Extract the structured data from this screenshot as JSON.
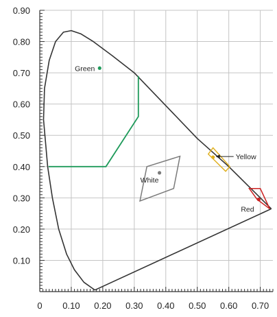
{
  "chart_data": {
    "type": "scatter",
    "title": "",
    "xlabel": "",
    "ylabel": "",
    "xlim": [
      0,
      0.74
    ],
    "ylim": [
      0,
      0.9
    ],
    "grid": true,
    "x_ticks": [
      0,
      0.1,
      0.2,
      0.3,
      0.4,
      0.5,
      0.6,
      0.7
    ],
    "x_tick_labels": [
      "0",
      "0.10",
      "0.20",
      "0.30",
      "0.40",
      "0.50",
      "0.60",
      "0.70"
    ],
    "y_ticks": [
      0.1,
      0.2,
      0.3,
      0.4,
      0.5,
      0.6,
      0.7,
      0.8,
      0.9
    ],
    "y_tick_labels": [
      "0.10",
      "0.20",
      "0.30",
      "0.40",
      "0.50",
      "0.60",
      "0.70",
      "0.80",
      "0.90"
    ],
    "spectral_locus": [
      [
        0.175,
        0.005
      ],
      [
        0.165,
        0.012
      ],
      [
        0.14,
        0.03
      ],
      [
        0.11,
        0.07
      ],
      [
        0.085,
        0.12
      ],
      [
        0.06,
        0.2
      ],
      [
        0.04,
        0.3
      ],
      [
        0.025,
        0.4
      ],
      [
        0.012,
        0.55
      ],
      [
        0.015,
        0.65
      ],
      [
        0.03,
        0.74
      ],
      [
        0.05,
        0.8
      ],
      [
        0.075,
        0.83
      ],
      [
        0.1,
        0.835
      ],
      [
        0.13,
        0.825
      ],
      [
        0.17,
        0.8
      ],
      [
        0.23,
        0.755
      ],
      [
        0.3,
        0.7
      ],
      [
        0.4,
        0.595
      ],
      [
        0.5,
        0.49
      ],
      [
        0.6,
        0.4
      ],
      [
        0.7,
        0.3
      ],
      [
        0.735,
        0.265
      ]
    ],
    "purple_line": [
      [
        0.735,
        0.265
      ],
      [
        0.175,
        0.005
      ]
    ],
    "regions": [
      {
        "color": "#1e9a5a",
        "points": [
          [
            0.313,
            0.69
          ],
          [
            0.313,
            0.56
          ],
          [
            0.21,
            0.4
          ],
          [
            0.028,
            0.4
          ]
        ]
      },
      {
        "color": "#e0b020",
        "points": [
          [
            0.535,
            0.44
          ],
          [
            0.55,
            0.46
          ],
          [
            0.603,
            0.4
          ],
          [
            0.59,
            0.385
          ]
        ]
      },
      {
        "color": "#cc2222",
        "points": [
          [
            0.665,
            0.33
          ],
          [
            0.7,
            0.33
          ],
          [
            0.73,
            0.265
          ],
          [
            0.69,
            0.295
          ]
        ]
      },
      {
        "color": "#7a7a7a",
        "points": [
          [
            0.318,
            0.29
          ],
          [
            0.34,
            0.4
          ],
          [
            0.445,
            0.433
          ],
          [
            0.425,
            0.33
          ]
        ]
      }
    ],
    "points": [
      {
        "label": "Green",
        "x": 0.19,
        "y": 0.715,
        "color": "#1e9a5a"
      },
      {
        "label": "Yellow",
        "x": 0.55,
        "y": 0.43,
        "color": "#e0b020"
      },
      {
        "label": "Red",
        "x": 0.695,
        "y": 0.295,
        "color": "#cc2222"
      },
      {
        "label": "White",
        "x": 0.38,
        "y": 0.38,
        "color": "#7a7a7a"
      }
    ],
    "colors": {
      "axis": "#333333",
      "grid": "#c4c4c4",
      "locus": "#333333"
    }
  }
}
